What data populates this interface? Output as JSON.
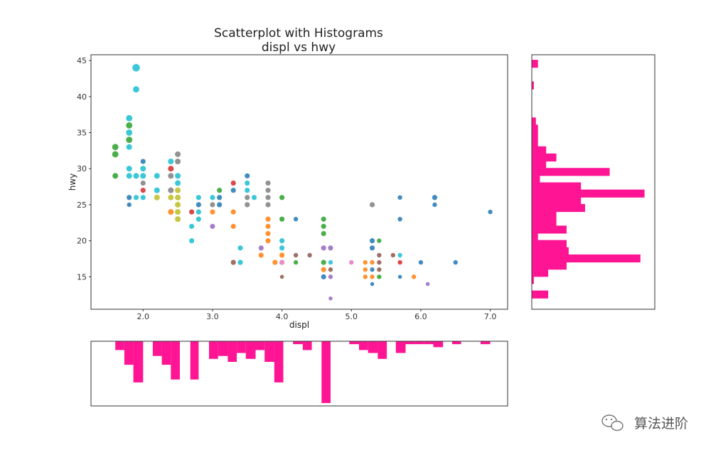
{
  "chart_data": {
    "type": "scatter",
    "title": "Scatterplot with Histograms",
    "subtitle": "displ vs hwy",
    "xlabel": "displ",
    "ylabel": "hwy",
    "xlim": [
      1.25,
      7.25
    ],
    "ylim": [
      10.5,
      45.8
    ],
    "xticks": [
      "2.0",
      "3.0",
      "4.0",
      "5.0",
      "6.0",
      "7.0"
    ],
    "yticks": [
      "15",
      "20",
      "25",
      "30",
      "35",
      "40",
      "45"
    ],
    "grid": false,
    "hist_color": "#ff1493",
    "colors": [
      "#1f77b4",
      "#ff7f0e",
      "#2ca02c",
      "#d62728",
      "#9467bd",
      "#8c564b",
      "#e377c2",
      "#7f7f7f",
      "#bcbd22",
      "#17becf"
    ],
    "points": [
      {
        "x": 1.6,
        "y": 33,
        "c": 2,
        "s": 1.1
      },
      {
        "x": 1.6,
        "y": 32,
        "c": 2,
        "s": 1.1
      },
      {
        "x": 1.6,
        "y": 29,
        "c": 2,
        "s": 1
      },
      {
        "x": 1.8,
        "y": 37,
        "c": 9,
        "s": 1.1
      },
      {
        "x": 1.8,
        "y": 36,
        "c": 2,
        "s": 1.1
      },
      {
        "x": 1.8,
        "y": 35,
        "c": 9,
        "s": 1.1
      },
      {
        "x": 1.8,
        "y": 34,
        "c": 2,
        "s": 1.1
      },
      {
        "x": 1.8,
        "y": 33,
        "c": 9,
        "s": 1
      },
      {
        "x": 1.8,
        "y": 30,
        "c": 9,
        "s": 1
      },
      {
        "x": 1.8,
        "y": 29,
        "c": 9,
        "s": 1
      },
      {
        "x": 1.8,
        "y": 26,
        "c": 0,
        "s": 0.9
      },
      {
        "x": 1.8,
        "y": 25,
        "c": 0,
        "s": 0.8
      },
      {
        "x": 1.9,
        "y": 44,
        "c": 9,
        "s": 1.3
      },
      {
        "x": 1.9,
        "y": 41,
        "c": 9,
        "s": 1.1
      },
      {
        "x": 1.9,
        "y": 29,
        "c": 9,
        "s": 1
      },
      {
        "x": 1.9,
        "y": 26,
        "c": 9,
        "s": 0.9
      },
      {
        "x": 2.0,
        "y": 31,
        "c": 0,
        "s": 0.9
      },
      {
        "x": 2.0,
        "y": 30,
        "c": 9,
        "s": 1
      },
      {
        "x": 2.0,
        "y": 29,
        "c": 9,
        "s": 1
      },
      {
        "x": 2.0,
        "y": 28,
        "c": 7,
        "s": 0.9
      },
      {
        "x": 2.0,
        "y": 27,
        "c": 3,
        "s": 0.9
      },
      {
        "x": 2.0,
        "y": 26,
        "c": 9,
        "s": 0.9
      },
      {
        "x": 2.2,
        "y": 29,
        "c": 9,
        "s": 1
      },
      {
        "x": 2.2,
        "y": 27,
        "c": 9,
        "s": 1
      },
      {
        "x": 2.2,
        "y": 26,
        "c": 8,
        "s": 1
      },
      {
        "x": 2.4,
        "y": 31,
        "c": 9,
        "s": 1
      },
      {
        "x": 2.4,
        "y": 30,
        "c": 3,
        "s": 1
      },
      {
        "x": 2.4,
        "y": 29,
        "c": 7,
        "s": 1
      },
      {
        "x": 2.4,
        "y": 27,
        "c": 7,
        "s": 1
      },
      {
        "x": 2.4,
        "y": 26,
        "c": 8,
        "s": 1
      },
      {
        "x": 2.4,
        "y": 24,
        "c": 1,
        "s": 1
      },
      {
        "x": 2.5,
        "y": 32,
        "c": 7,
        "s": 1
      },
      {
        "x": 2.5,
        "y": 31,
        "c": 7,
        "s": 1
      },
      {
        "x": 2.5,
        "y": 29,
        "c": 9,
        "s": 1
      },
      {
        "x": 2.5,
        "y": 28,
        "c": 9,
        "s": 1
      },
      {
        "x": 2.5,
        "y": 27,
        "c": 8,
        "s": 1
      },
      {
        "x": 2.5,
        "y": 26,
        "c": 8,
        "s": 1
      },
      {
        "x": 2.5,
        "y": 25,
        "c": 8,
        "s": 1
      },
      {
        "x": 2.5,
        "y": 24,
        "c": 8,
        "s": 1
      },
      {
        "x": 2.5,
        "y": 23,
        "c": 8,
        "s": 1
      },
      {
        "x": 2.7,
        "y": 24,
        "c": 3,
        "s": 0.9
      },
      {
        "x": 2.7,
        "y": 22,
        "c": 9,
        "s": 0.9
      },
      {
        "x": 2.7,
        "y": 20,
        "c": 9,
        "s": 0.9
      },
      {
        "x": 2.8,
        "y": 26,
        "c": 9,
        "s": 0.9
      },
      {
        "x": 2.8,
        "y": 25,
        "c": 0,
        "s": 0.9
      },
      {
        "x": 2.8,
        "y": 24,
        "c": 9,
        "s": 0.9
      },
      {
        "x": 2.8,
        "y": 23,
        "c": 9,
        "s": 0.9
      },
      {
        "x": 3.0,
        "y": 26,
        "c": 9,
        "s": 0.9
      },
      {
        "x": 3.0,
        "y": 25,
        "c": 7,
        "s": 0.9
      },
      {
        "x": 3.0,
        "y": 24,
        "c": 1,
        "s": 0.9
      },
      {
        "x": 3.0,
        "y": 22,
        "c": 4,
        "s": 0.9
      },
      {
        "x": 3.1,
        "y": 27,
        "c": 2,
        "s": 0.9
      },
      {
        "x": 3.1,
        "y": 26,
        "c": 0,
        "s": 0.9
      },
      {
        "x": 3.1,
        "y": 25,
        "c": 0,
        "s": 0.9
      },
      {
        "x": 3.3,
        "y": 28,
        "c": 3,
        "s": 0.9
      },
      {
        "x": 3.3,
        "y": 27,
        "c": 0,
        "s": 0.9
      },
      {
        "x": 3.3,
        "y": 24,
        "c": 1,
        "s": 0.9
      },
      {
        "x": 3.3,
        "y": 22,
        "c": 1,
        "s": 0.9
      },
      {
        "x": 3.3,
        "y": 17,
        "c": 5,
        "s": 0.9
      },
      {
        "x": 3.4,
        "y": 19,
        "c": 9,
        "s": 0.9
      },
      {
        "x": 3.4,
        "y": 17,
        "c": 9,
        "s": 0.9
      },
      {
        "x": 3.5,
        "y": 29,
        "c": 0,
        "s": 0.9
      },
      {
        "x": 3.5,
        "y": 28,
        "c": 9,
        "s": 0.9
      },
      {
        "x": 3.5,
        "y": 27,
        "c": 9,
        "s": 0.9
      },
      {
        "x": 3.5,
        "y": 26,
        "c": 7,
        "s": 0.9
      },
      {
        "x": 3.5,
        "y": 25,
        "c": 7,
        "s": 0.9
      },
      {
        "x": 3.6,
        "y": 26,
        "c": 9,
        "s": 0.9
      },
      {
        "x": 3.7,
        "y": 19,
        "c": 4,
        "s": 0.9
      },
      {
        "x": 3.7,
        "y": 18,
        "c": 1,
        "s": 0.9
      },
      {
        "x": 3.8,
        "y": 28,
        "c": 7,
        "s": 0.9
      },
      {
        "x": 3.8,
        "y": 27,
        "c": 7,
        "s": 0.9
      },
      {
        "x": 3.8,
        "y": 26,
        "c": 7,
        "s": 0.9
      },
      {
        "x": 3.8,
        "y": 25,
        "c": 7,
        "s": 0.9
      },
      {
        "x": 3.8,
        "y": 23,
        "c": 1,
        "s": 0.9
      },
      {
        "x": 3.8,
        "y": 22,
        "c": 1,
        "s": 0.9
      },
      {
        "x": 3.8,
        "y": 21,
        "c": 1,
        "s": 0.9
      },
      {
        "x": 3.8,
        "y": 20,
        "c": 1,
        "s": 0.9
      },
      {
        "x": 3.9,
        "y": 17,
        "c": 1,
        "s": 0.9
      },
      {
        "x": 4.0,
        "y": 26,
        "c": 2,
        "s": 0.9
      },
      {
        "x": 4.0,
        "y": 23,
        "c": 2,
        "s": 0.9
      },
      {
        "x": 4.0,
        "y": 20,
        "c": 9,
        "s": 0.9
      },
      {
        "x": 4.0,
        "y": 19,
        "c": 9,
        "s": 0.9
      },
      {
        "x": 4.0,
        "y": 18,
        "c": 1,
        "s": 0.9
      },
      {
        "x": 4.0,
        "y": 17,
        "c": 6,
        "s": 0.9
      },
      {
        "x": 4.0,
        "y": 15,
        "c": 5,
        "s": 0.7
      },
      {
        "x": 4.2,
        "y": 23,
        "c": 0,
        "s": 0.8
      },
      {
        "x": 4.2,
        "y": 18,
        "c": 5,
        "s": 0.8
      },
      {
        "x": 4.2,
        "y": 17,
        "c": 2,
        "s": 0.8
      },
      {
        "x": 4.4,
        "y": 18,
        "c": 5,
        "s": 0.8
      },
      {
        "x": 4.6,
        "y": 23,
        "c": 2,
        "s": 0.9
      },
      {
        "x": 4.6,
        "y": 22,
        "c": 2,
        "s": 0.9
      },
      {
        "x": 4.6,
        "y": 21,
        "c": 2,
        "s": 0.9
      },
      {
        "x": 4.6,
        "y": 19,
        "c": 4,
        "s": 0.9
      },
      {
        "x": 4.6,
        "y": 17,
        "c": 2,
        "s": 0.9
      },
      {
        "x": 4.6,
        "y": 16,
        "c": 1,
        "s": 0.9
      },
      {
        "x": 4.6,
        "y": 15,
        "c": 0,
        "s": 0.9
      },
      {
        "x": 4.7,
        "y": 19,
        "c": 4,
        "s": 0.9
      },
      {
        "x": 4.7,
        "y": 17,
        "c": 9,
        "s": 0.8
      },
      {
        "x": 4.7,
        "y": 16,
        "c": 5,
        "s": 0.8
      },
      {
        "x": 4.7,
        "y": 15,
        "c": 4,
        "s": 0.8
      },
      {
        "x": 4.7,
        "y": 12,
        "c": 4,
        "s": 0.7
      },
      {
        "x": 5.0,
        "y": 17,
        "c": 6,
        "s": 0.8
      },
      {
        "x": 5.2,
        "y": 17,
        "c": 1,
        "s": 0.8
      },
      {
        "x": 5.2,
        "y": 16,
        "c": 1,
        "s": 0.8
      },
      {
        "x": 5.2,
        "y": 15,
        "c": 1,
        "s": 0.8
      },
      {
        "x": 5.3,
        "y": 25,
        "c": 7,
        "s": 0.9
      },
      {
        "x": 5.3,
        "y": 20,
        "c": 0,
        "s": 0.9
      },
      {
        "x": 5.3,
        "y": 19,
        "c": 0,
        "s": 0.9
      },
      {
        "x": 5.3,
        "y": 17,
        "c": 1,
        "s": 0.8
      },
      {
        "x": 5.3,
        "y": 16,
        "c": 0,
        "s": 0.8
      },
      {
        "x": 5.3,
        "y": 15,
        "c": 1,
        "s": 0.8
      },
      {
        "x": 5.3,
        "y": 14,
        "c": 0,
        "s": 0.7
      },
      {
        "x": 5.4,
        "y": 20,
        "c": 2,
        "s": 0.8
      },
      {
        "x": 5.4,
        "y": 18,
        "c": 5,
        "s": 0.8
      },
      {
        "x": 5.4,
        "y": 17,
        "c": 5,
        "s": 0.8
      },
      {
        "x": 5.4,
        "y": 16,
        "c": 5,
        "s": 0.8
      },
      {
        "x": 5.4,
        "y": 15,
        "c": 2,
        "s": 0.8
      },
      {
        "x": 5.6,
        "y": 18,
        "c": 5,
        "s": 0.8
      },
      {
        "x": 5.7,
        "y": 26,
        "c": 0,
        "s": 0.8
      },
      {
        "x": 5.7,
        "y": 23,
        "c": 0,
        "s": 0.8
      },
      {
        "x": 5.7,
        "y": 18,
        "c": 9,
        "s": 0.8
      },
      {
        "x": 5.7,
        "y": 17,
        "c": 3,
        "s": 0.8
      },
      {
        "x": 5.7,
        "y": 15,
        "c": 0,
        "s": 0.7
      },
      {
        "x": 5.9,
        "y": 15,
        "c": 1,
        "s": 0.8
      },
      {
        "x": 6.0,
        "y": 17,
        "c": 0,
        "s": 0.8
      },
      {
        "x": 6.1,
        "y": 14,
        "c": 4,
        "s": 0.7
      },
      {
        "x": 6.2,
        "y": 26,
        "c": 0,
        "s": 0.9
      },
      {
        "x": 6.2,
        "y": 25,
        "c": 0,
        "s": 0.8
      },
      {
        "x": 6.5,
        "y": 17,
        "c": 0,
        "s": 0.8
      },
      {
        "x": 7.0,
        "y": 24,
        "c": 0,
        "s": 0.8
      }
    ],
    "hist_x": [
      {
        "x0": 1.6,
        "x1": 1.73,
        "count": 3
      },
      {
        "x0": 1.73,
        "x1": 1.86,
        "count": 8
      },
      {
        "x0": 1.86,
        "x1": 2.0,
        "count": 14
      },
      {
        "x0": 2.14,
        "x1": 2.27,
        "count": 5
      },
      {
        "x0": 2.27,
        "x1": 2.4,
        "count": 8
      },
      {
        "x0": 2.4,
        "x1": 2.53,
        "count": 13
      },
      {
        "x0": 2.68,
        "x1": 2.8,
        "count": 13
      },
      {
        "x0": 2.95,
        "x1": 3.08,
        "count": 6
      },
      {
        "x0": 3.08,
        "x1": 3.22,
        "count": 5
      },
      {
        "x0": 3.22,
        "x1": 3.35,
        "count": 7
      },
      {
        "x0": 3.35,
        "x1": 3.48,
        "count": 4
      },
      {
        "x0": 3.48,
        "x1": 3.62,
        "count": 6
      },
      {
        "x0": 3.62,
        "x1": 3.75,
        "count": 3
      },
      {
        "x0": 3.75,
        "x1": 3.89,
        "count": 7
      },
      {
        "x0": 3.89,
        "x1": 4.02,
        "count": 14
      },
      {
        "x0": 4.16,
        "x1": 4.3,
        "count": 1
      },
      {
        "x0": 4.3,
        "x1": 4.43,
        "count": 3
      },
      {
        "x0": 4.57,
        "x1": 4.7,
        "count": 21
      },
      {
        "x0": 4.97,
        "x1": 5.11,
        "count": 1
      },
      {
        "x0": 5.11,
        "x1": 5.24,
        "count": 3
      },
      {
        "x0": 5.24,
        "x1": 5.38,
        "count": 4
      },
      {
        "x0": 5.38,
        "x1": 5.51,
        "count": 6
      },
      {
        "x0": 5.64,
        "x1": 5.78,
        "count": 4
      },
      {
        "x0": 5.78,
        "x1": 5.92,
        "count": 1
      },
      {
        "x0": 5.92,
        "x1": 6.05,
        "count": 1
      },
      {
        "x0": 6.05,
        "x1": 6.18,
        "count": 1
      },
      {
        "x0": 6.18,
        "x1": 6.32,
        "count": 2
      },
      {
        "x0": 6.45,
        "x1": 6.58,
        "count": 1
      },
      {
        "x0": 6.86,
        "x1": 7.0,
        "count": 1
      }
    ],
    "hist_y": [
      {
        "y0": 12,
        "y1": 13.1,
        "count": 8
      },
      {
        "y0": 14,
        "y1": 15.1,
        "count": 1
      },
      {
        "y0": 15,
        "y1": 16.1,
        "count": 8
      },
      {
        "y0": 16,
        "y1": 17.1,
        "count": 17
      },
      {
        "y0": 17,
        "y1": 18.1,
        "count": 53
      },
      {
        "y0": 18,
        "y1": 19.1,
        "count": 18
      },
      {
        "y0": 19,
        "y1": 20.1,
        "count": 17
      },
      {
        "y0": 20,
        "y1": 21.1,
        "count": 3
      },
      {
        "y0": 21,
        "y1": 22.1,
        "count": 17
      },
      {
        "y0": 22,
        "y1": 23.1,
        "count": 12
      },
      {
        "y0": 23,
        "y1": 24.1,
        "count": 12
      },
      {
        "y0": 24,
        "y1": 25.1,
        "count": 26
      },
      {
        "y0": 25,
        "y1": 26.1,
        "count": 24
      },
      {
        "y0": 26,
        "y1": 27.1,
        "count": 55
      },
      {
        "y0": 27,
        "y1": 28.1,
        "count": 24
      },
      {
        "y0": 28,
        "y1": 29.1,
        "count": 4
      },
      {
        "y0": 29,
        "y1": 30.1,
        "count": 38
      },
      {
        "y0": 30,
        "y1": 31.1,
        "count": 7
      },
      {
        "y0": 31,
        "y1": 32.1,
        "count": 12
      },
      {
        "y0": 32,
        "y1": 33.1,
        "count": 7
      },
      {
        "y0": 33,
        "y1": 34.1,
        "count": 3
      },
      {
        "y0": 34,
        "y1": 35.1,
        "count": 3
      },
      {
        "y0": 35,
        "y1": 36.1,
        "count": 3
      },
      {
        "y0": 36,
        "y1": 37.1,
        "count": 2
      },
      {
        "y0": 41,
        "y1": 42.1,
        "count": 1
      },
      {
        "y0": 44,
        "y1": 45.1,
        "count": 3
      }
    ]
  },
  "watermark": {
    "text": "算法进阶",
    "icon": "wechat-icon"
  }
}
